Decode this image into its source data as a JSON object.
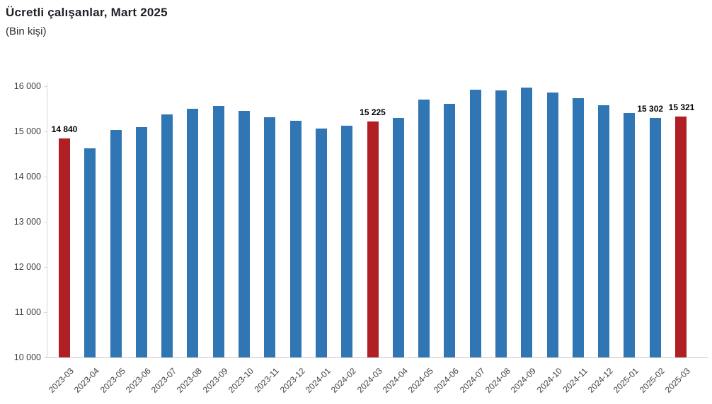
{
  "header": {
    "title": "Ücretli çalışanlar, Mart 2025",
    "subtitle": "(Bin kişi)"
  },
  "chart_data": {
    "type": "bar",
    "title": "Ücretli çalışanlar, Mart 2025",
    "subtitle": "(Bin kişi)",
    "unit": "Bin kişi",
    "xlabel": "",
    "ylabel": "",
    "ylim": [
      10000,
      16000
    ],
    "grid": false,
    "legend": false,
    "colors": {
      "bar_default": "#3076B4",
      "bar_highlight": "#B01F24",
      "axis_text": "#3f3f3f",
      "label_text": "#000000"
    },
    "yticks": [
      10000,
      11000,
      12000,
      13000,
      14000,
      15000,
      16000
    ],
    "ytick_labels": [
      "10 000",
      "11 000",
      "12 000",
      "13 000",
      "14 000",
      "15 000",
      "16 000"
    ],
    "categories": [
      "2023-03",
      "2023-04",
      "2023-05",
      "2023-06",
      "2023-07",
      "2023-08",
      "2023-09",
      "2023-10",
      "2023-11",
      "2023-12",
      "2024-01",
      "2024-02",
      "2024-03",
      "2024-04",
      "2024-05",
      "2024-06",
      "2024-07",
      "2024-08",
      "2024-09",
      "2024-10",
      "2024-11",
      "2024-12",
      "2025-01",
      "2025-02",
      "2025-03"
    ],
    "values": [
      14840,
      14620,
      15030,
      15090,
      15380,
      15500,
      15570,
      15460,
      15310,
      15240,
      15070,
      15130,
      15225,
      15290,
      15700,
      15610,
      15920,
      15900,
      15975,
      15860,
      15740,
      15580,
      15410,
      15302,
      15321
    ],
    "highlighted_categories": [
      "2023-03",
      "2024-03",
      "2025-03"
    ],
    "annotations": [
      {
        "category": "2023-03",
        "text": "14 840",
        "dx": 0
      },
      {
        "category": "2024-03",
        "text": "15 225",
        "dx": 0
      },
      {
        "category": "2025-02",
        "text": "15 302",
        "dx": -7
      },
      {
        "category": "2025-03",
        "text": "15 321",
        "dx": 1
      }
    ]
  }
}
